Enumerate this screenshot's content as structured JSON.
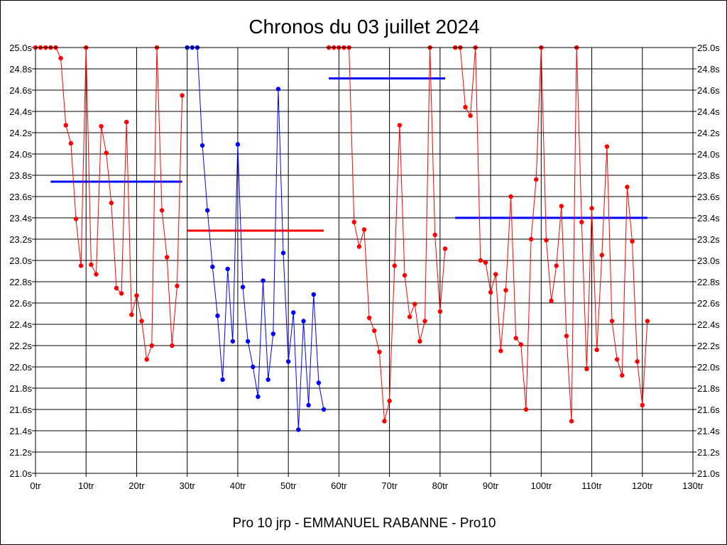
{
  "chart_data": {
    "type": "line",
    "title": "Chronos du 03 juillet 2024",
    "subtitle": "Pro 10 jrp - EMMANUEL RABANNE - Pro10",
    "xlabel": "",
    "ylabel": "",
    "xlim": [
      0,
      130
    ],
    "ylim": [
      21.0,
      25.0
    ],
    "x_ticks": [
      {
        "value": 0,
        "label": "0tr"
      },
      {
        "value": 10,
        "label": "10tr"
      },
      {
        "value": 20,
        "label": "20tr"
      },
      {
        "value": 30,
        "label": "30tr"
      },
      {
        "value": 40,
        "label": "40tr"
      },
      {
        "value": 50,
        "label": "50tr"
      },
      {
        "value": 60,
        "label": "60tr"
      },
      {
        "value": 70,
        "label": "70tr"
      },
      {
        "value": 80,
        "label": "80tr"
      },
      {
        "value": 90,
        "label": "90tr"
      },
      {
        "value": 100,
        "label": "100tr"
      },
      {
        "value": 110,
        "label": "110tr"
      },
      {
        "value": 120,
        "label": "120tr"
      },
      {
        "value": 130,
        "label": "130tr"
      }
    ],
    "y_ticks": [
      {
        "value": 25.0,
        "label": "25.0s"
      },
      {
        "value": 24.8,
        "label": "24.8s"
      },
      {
        "value": 24.6,
        "label": "24.6s"
      },
      {
        "value": 24.4,
        "label": "24.4s"
      },
      {
        "value": 24.2,
        "label": "24.2s"
      },
      {
        "value": 24.0,
        "label": "24.0s"
      },
      {
        "value": 23.8,
        "label": "23.8s"
      },
      {
        "value": 23.6,
        "label": "23.6s"
      },
      {
        "value": 23.4,
        "label": "23.4s"
      },
      {
        "value": 23.2,
        "label": "23.2s"
      },
      {
        "value": 23.0,
        "label": "23.0s"
      },
      {
        "value": 22.8,
        "label": "22.8s"
      },
      {
        "value": 22.6,
        "label": "22.6s"
      },
      {
        "value": 22.4,
        "label": "22.4s"
      },
      {
        "value": 22.2,
        "label": "22.2s"
      },
      {
        "value": 22.0,
        "label": "22.0s"
      },
      {
        "value": 21.8,
        "label": "21.8s"
      },
      {
        "value": 21.6,
        "label": "21.6s"
      },
      {
        "value": 21.4,
        "label": "21.4s"
      },
      {
        "value": 21.2,
        "label": "21.2s"
      },
      {
        "value": 21.0,
        "label": "21.0s"
      }
    ],
    "grid": true,
    "series": [
      {
        "name": "segment-1",
        "color": "#ff0000",
        "x": [
          0,
          1,
          2,
          3,
          4,
          5,
          6,
          7,
          8,
          9,
          10,
          11,
          12,
          13,
          14,
          15,
          16,
          17,
          18,
          19,
          20,
          21,
          22,
          23,
          24,
          25,
          26,
          27,
          28,
          29
        ],
        "y": [
          25.0,
          25.0,
          25.0,
          25.0,
          25.0,
          24.9,
          24.27,
          24.1,
          23.39,
          22.95,
          25.0,
          22.96,
          22.87,
          24.26,
          24.01,
          23.54,
          22.74,
          22.69,
          24.3,
          22.49,
          22.67,
          22.43,
          22.07,
          22.2,
          25.0,
          23.47,
          23.03,
          22.2,
          22.76,
          24.55
        ]
      },
      {
        "name": "segment-2",
        "color": "#0000ff",
        "x": [
          30,
          31,
          32,
          33,
          34,
          35,
          36,
          37,
          38,
          39,
          40,
          41,
          42,
          43,
          44,
          45,
          46,
          47,
          48,
          49,
          50,
          51,
          52,
          53,
          54,
          55,
          56,
          57
        ],
        "y": [
          25.0,
          25.0,
          25.0,
          24.08,
          23.47,
          22.94,
          22.48,
          21.88,
          22.92,
          22.24,
          24.09,
          22.75,
          22.24,
          22.0,
          21.72,
          22.81,
          21.88,
          22.31,
          24.61,
          23.07,
          22.05,
          22.51,
          21.41,
          22.43,
          21.64,
          22.68,
          21.85,
          21.6
        ]
      },
      {
        "name": "segment-3",
        "color": "#ff0000",
        "x": [
          58,
          59,
          60,
          61,
          62,
          63,
          64,
          65,
          66,
          67,
          68,
          69,
          70,
          71,
          72,
          73,
          74,
          75,
          76,
          77,
          78,
          79,
          80,
          81
        ],
        "y": [
          25.0,
          25.0,
          25.0,
          25.0,
          25.0,
          23.36,
          23.13,
          23.29,
          22.46,
          22.34,
          22.14,
          21.49,
          21.68,
          22.95,
          24.27,
          22.86,
          22.47,
          22.59,
          22.24,
          22.43,
          25.0,
          23.24,
          22.52,
          23.11
        ]
      },
      {
        "name": "segment-4",
        "color": "#ff0000",
        "x": [
          83,
          84,
          85,
          86,
          87,
          88,
          89,
          90,
          91,
          92,
          93,
          94,
          95,
          96,
          97,
          98,
          99,
          100,
          101,
          102,
          103,
          104,
          105,
          106,
          107,
          108,
          109,
          110,
          111,
          112,
          113,
          114,
          115,
          116,
          117,
          118,
          119,
          120,
          121
        ],
        "y": [
          25.0,
          25.0,
          24.44,
          24.36,
          25.0,
          23.0,
          22.98,
          22.7,
          22.87,
          22.15,
          22.72,
          23.6,
          22.27,
          22.21,
          21.6,
          23.2,
          23.76,
          25.0,
          23.19,
          22.62,
          22.95,
          23.51,
          22.29,
          21.49,
          25.0,
          23.36,
          21.98,
          23.49,
          22.16,
          23.05,
          24.07,
          22.43,
          22.07,
          21.92,
          23.69,
          23.18,
          22.05,
          21.64,
          22.43
        ]
      }
    ],
    "averages": [
      {
        "name": "avg-1",
        "color": "#0000ff",
        "x_start": 3,
        "x_end": 29,
        "value": 23.74
      },
      {
        "name": "avg-2",
        "color": "#ff0000",
        "x_start": 30,
        "x_end": 57,
        "value": 23.28
      },
      {
        "name": "avg-3",
        "color": "#0000ff",
        "x_start": 58,
        "x_end": 81,
        "value": 24.71
      },
      {
        "name": "avg-4",
        "color": "#0000ff",
        "x_start": 83,
        "x_end": 121,
        "value": 23.4
      }
    ]
  }
}
